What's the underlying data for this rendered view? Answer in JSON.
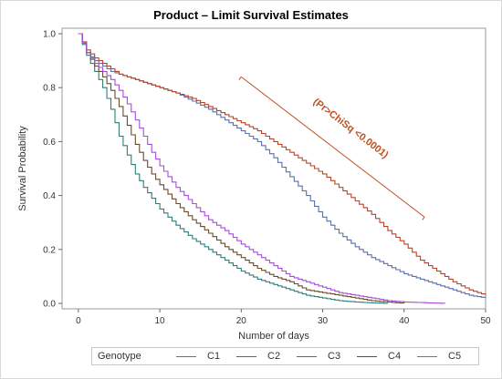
{
  "chart_data": {
    "type": "line",
    "title": "Product – Limit Survival Estimates",
    "xlabel": "Number of days",
    "ylabel": "Survival Probability",
    "xlim": [
      -2,
      50
    ],
    "ylim": [
      0,
      1.0
    ],
    "xticks": [
      "0",
      "10",
      "20",
      "30",
      "40",
      "50"
    ],
    "yticks": [
      "0.0",
      "0.2",
      "0.4",
      "0.6",
      "0.8",
      "1.0"
    ],
    "legend_title": "Genotype",
    "legend_position": "bottom",
    "annotation": "(Pr>ChiSq <0.0001)",
    "series": [
      {
        "name": "C1",
        "color": "#5b6fa8",
        "x": [
          0,
          1,
          2,
          3,
          4,
          5,
          6,
          8,
          10,
          12,
          14,
          16,
          18,
          20,
          22,
          24,
          26,
          28,
          30,
          32,
          34,
          36,
          38,
          40,
          42,
          44,
          46,
          48,
          50
        ],
        "y": [
          1.0,
          0.93,
          0.9,
          0.88,
          0.86,
          0.85,
          0.84,
          0.82,
          0.8,
          0.78,
          0.75,
          0.72,
          0.68,
          0.64,
          0.6,
          0.54,
          0.47,
          0.4,
          0.32,
          0.26,
          0.21,
          0.17,
          0.14,
          0.11,
          0.09,
          0.07,
          0.05,
          0.03,
          0.02
        ]
      },
      {
        "name": "C2",
        "color": "#b5442a",
        "x": [
          0,
          1,
          2,
          3,
          4,
          5,
          6,
          8,
          10,
          12,
          14,
          16,
          18,
          20,
          22,
          24,
          26,
          28,
          30,
          32,
          34,
          36,
          38,
          40,
          42,
          44,
          46,
          48,
          50
        ],
        "y": [
          1.0,
          0.94,
          0.91,
          0.89,
          0.87,
          0.85,
          0.84,
          0.82,
          0.8,
          0.78,
          0.76,
          0.73,
          0.7,
          0.67,
          0.64,
          0.6,
          0.56,
          0.52,
          0.48,
          0.43,
          0.38,
          0.33,
          0.27,
          0.22,
          0.16,
          0.12,
          0.08,
          0.05,
          0.03
        ]
      },
      {
        "name": "C3",
        "color": "#2e7d7a",
        "x": [
          0,
          1,
          2,
          3,
          4,
          5,
          6,
          7,
          8,
          9,
          10,
          12,
          14,
          16,
          18,
          20,
          22,
          24,
          26,
          28,
          30,
          32,
          34,
          36,
          38
        ],
        "y": [
          1.0,
          0.92,
          0.86,
          0.8,
          0.72,
          0.62,
          0.55,
          0.48,
          0.43,
          0.39,
          0.35,
          0.29,
          0.24,
          0.2,
          0.16,
          0.12,
          0.09,
          0.07,
          0.05,
          0.03,
          0.02,
          0.01,
          0.005,
          0.002,
          0.0
        ]
      },
      {
        "name": "C4",
        "color": "#6b4a2a",
        "x": [
          0,
          1,
          2,
          3,
          4,
          5,
          6,
          7,
          8,
          9,
          10,
          12,
          14,
          16,
          18,
          20,
          22,
          24,
          26,
          28,
          30,
          32,
          34,
          36,
          38,
          40
        ],
        "y": [
          1.0,
          0.93,
          0.88,
          0.84,
          0.79,
          0.73,
          0.66,
          0.59,
          0.53,
          0.48,
          0.44,
          0.37,
          0.31,
          0.26,
          0.21,
          0.17,
          0.13,
          0.1,
          0.08,
          0.05,
          0.04,
          0.03,
          0.02,
          0.01,
          0.005,
          0.0
        ]
      },
      {
        "name": "C5",
        "color": "#a64cdb",
        "x": [
          0,
          1,
          2,
          3,
          4,
          5,
          6,
          7,
          8,
          9,
          10,
          12,
          14,
          16,
          18,
          20,
          22,
          24,
          26,
          28,
          30,
          32,
          34,
          36,
          38,
          40,
          45
        ],
        "y": [
          1.0,
          0.93,
          0.89,
          0.86,
          0.83,
          0.79,
          0.74,
          0.68,
          0.62,
          0.56,
          0.51,
          0.43,
          0.37,
          0.31,
          0.27,
          0.22,
          0.18,
          0.14,
          0.1,
          0.08,
          0.06,
          0.04,
          0.03,
          0.02,
          0.01,
          0.005,
          0.0
        ]
      }
    ]
  }
}
